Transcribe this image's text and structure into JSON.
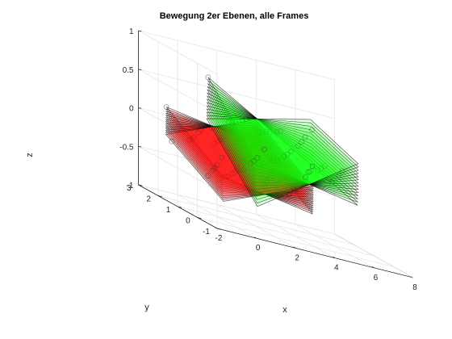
{
  "chart_data": {
    "type": "scatter3d",
    "title": "Bewegung 2er Ebenen, alle Frames",
    "xlabel": "x",
    "ylabel": "y",
    "zlabel": "z",
    "xlim": [
      -2,
      8
    ],
    "ylim": [
      -1,
      3
    ],
    "zlim": [
      -1,
      1
    ],
    "x_ticks": [
      "-2",
      "0",
      "2",
      "4",
      "6",
      "8"
    ],
    "y_ticks": [
      "-1",
      "0",
      "1",
      "2",
      "3"
    ],
    "z_ticks": [
      "-1",
      "-0.5",
      "0",
      "0.5",
      "1"
    ],
    "grid": true,
    "box": true,
    "series": [
      {
        "color": "#ff0000",
        "fill_opacity": 0.35,
        "frames": 14,
        "corners": [
          [
            -1.6,
            2.0,
            0.0
          ],
          [
            3.6,
            2.6,
            0.1
          ],
          [
            3.9,
            0.0,
            -0.4
          ],
          [
            -1.3,
            -0.6,
            -0.5
          ]
        ]
      },
      {
        "color": "#00ff00",
        "fill_opacity": 0.35,
        "frames": 14,
        "corners": [
          [
            0.9,
            2.4,
            0.4
          ],
          [
            6.4,
            2.6,
            0.15
          ],
          [
            6.2,
            0.0,
            -0.05
          ],
          [
            0.7,
            -0.3,
            -0.35
          ]
        ]
      }
    ]
  }
}
